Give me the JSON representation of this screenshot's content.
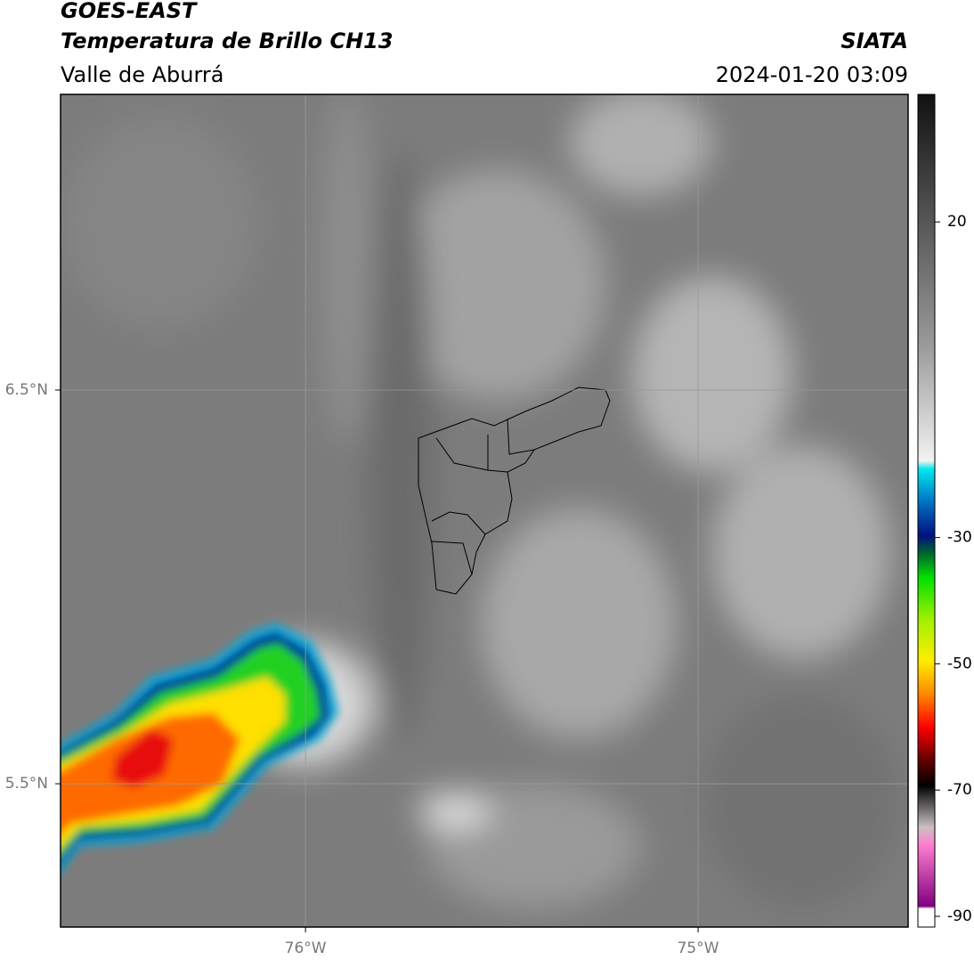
{
  "header": {
    "title": "GOES-EAST",
    "subtitle": "Temperatura de Brillo CH13",
    "region": "Valle de Aburrá",
    "source": "SIATA",
    "datetime": "2024-01-20 03:09"
  },
  "map": {
    "xlim": [
      -76.624,
      -74.465
    ],
    "ylim": [
      5.136,
      7.251
    ],
    "xticks": [
      {
        "value": -76,
        "label": "76°W"
      },
      {
        "value": -75,
        "label": "75°W"
      }
    ],
    "yticks": [
      {
        "value": 6.5,
        "label": "6.5°N"
      },
      {
        "value": 5.5,
        "label": "5.5°N"
      }
    ]
  },
  "colorbar": {
    "clim": [
      -91.7,
      40.2
    ],
    "ticks": [
      20,
      -30,
      -50,
      -70,
      -90
    ]
  }
}
